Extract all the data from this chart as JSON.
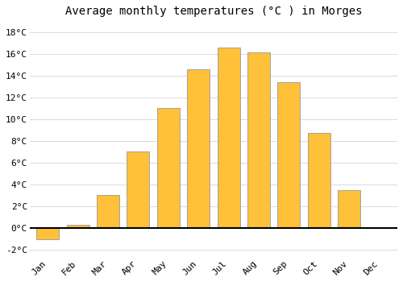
{
  "title": "Average monthly temperatures (°C ) in Morges",
  "months": [
    "Jan",
    "Feb",
    "Mar",
    "Apr",
    "May",
    "Jun",
    "Jul",
    "Aug",
    "Sep",
    "Oct",
    "Nov",
    "Dec"
  ],
  "values": [
    -1.0,
    0.3,
    3.0,
    7.0,
    11.0,
    14.6,
    16.6,
    16.1,
    13.4,
    8.7,
    3.5,
    0.0
  ],
  "bar_color": "#FFC03A",
  "bar_edge_color": "#999999",
  "ylim": [
    -2.5,
    19.0
  ],
  "yticks": [
    -2,
    0,
    2,
    4,
    6,
    8,
    10,
    12,
    14,
    16,
    18
  ],
  "background_color": "#ffffff",
  "grid_color": "#dddddd",
  "title_fontsize": 10,
  "tick_fontsize": 8,
  "bar_width": 0.75
}
